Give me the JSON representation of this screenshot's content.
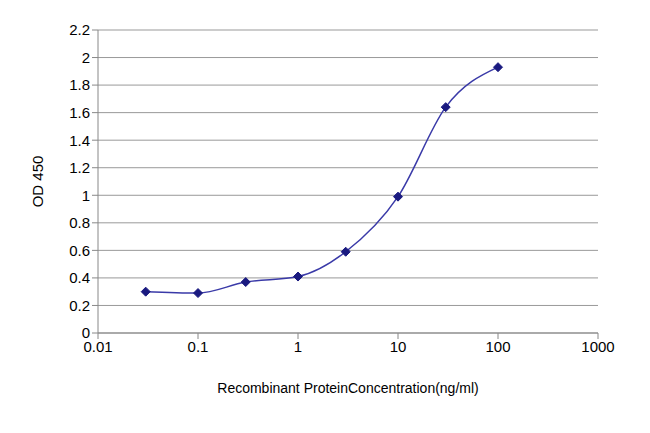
{
  "chart_data": {
    "type": "line",
    "x_label": "Recombinant ProteinConcentration(ng/ml)",
    "y_label": "OD 450",
    "x": [
      0.03,
      0.1,
      0.3,
      1,
      3,
      10,
      30,
      100
    ],
    "values": [
      0.3,
      0.29,
      0.37,
      0.41,
      0.59,
      0.99,
      1.64,
      1.93
    ],
    "color": "#3a3aa8",
    "marker": "diamond",
    "xlim": [
      0.01,
      1000
    ],
    "xticks": [
      0.01,
      0.1,
      1,
      10,
      100,
      1000
    ],
    "ylim": [
      0,
      2.2
    ],
    "yticks": [
      0,
      0.2,
      0.4,
      0.6,
      0.8,
      1,
      1.2,
      1.4,
      1.6,
      1.8,
      2,
      2.2
    ],
    "log": "x",
    "grid": true
  }
}
